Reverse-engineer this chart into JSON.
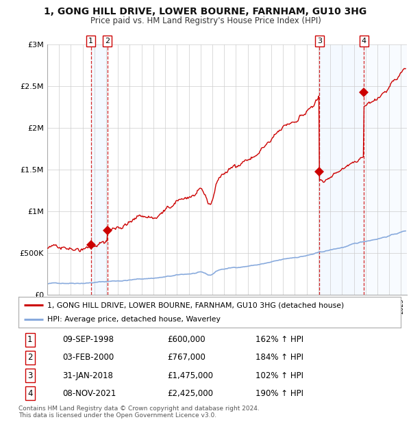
{
  "title": "1, GONG HILL DRIVE, LOWER BOURNE, FARNHAM, GU10 3HG",
  "subtitle": "Price paid vs. HM Land Registry's House Price Index (HPI)",
  "transactions": [
    {
      "num": 1,
      "date_str": "09-SEP-1998",
      "date_x": 1998.69,
      "price": 600000,
      "hpi_pct": "162% ↑ HPI"
    },
    {
      "num": 2,
      "date_str": "03-FEB-2000",
      "date_x": 2000.09,
      "price": 767000,
      "hpi_pct": "184% ↑ HPI"
    },
    {
      "num": 3,
      "date_str": "31-JAN-2018",
      "date_x": 2018.08,
      "price": 1475000,
      "hpi_pct": "102% ↑ HPI"
    },
    {
      "num": 4,
      "date_str": "08-NOV-2021",
      "date_x": 2021.85,
      "price": 2425000,
      "hpi_pct": "190% ↑ HPI"
    }
  ],
  "legend_property": "1, GONG HILL DRIVE, LOWER BOURNE, FARNHAM, GU10 3HG (detached house)",
  "legend_hpi": "HPI: Average price, detached house, Waverley",
  "footer": "Contains HM Land Registry data © Crown copyright and database right 2024.\nThis data is licensed under the Open Government Licence v3.0.",
  "property_line_color": "#cc0000",
  "hpi_line_color": "#88aadd",
  "background_color": "#ffffff",
  "grid_color": "#cccccc",
  "shade_color": "#ddeeff",
  "dashed_line_color": "#cc0000",
  "ylim": [
    0,
    3000000
  ],
  "xlim": [
    1995.0,
    2025.5
  ],
  "yticks": [
    0,
    500000,
    1000000,
    1500000,
    2000000,
    2500000,
    3000000
  ],
  "ytick_labels": [
    "£0",
    "£500K",
    "£1M",
    "£1.5M",
    "£2M",
    "£2.5M",
    "£3M"
  ]
}
